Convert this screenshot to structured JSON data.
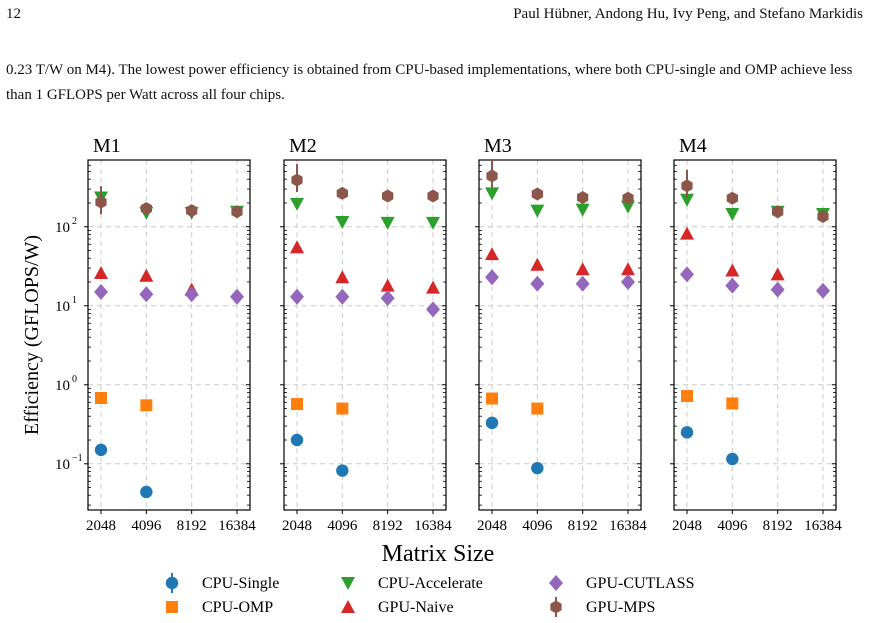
{
  "header": {
    "page_number": "12",
    "authors": "Paul Hübner, Andong Hu, Ivy Peng, and Stefano Markidis"
  },
  "paragraph": "0.23 T/W on M4). The lowest power efficiency is obtained from CPU-based implementations, where both CPU-single and OMP achieve less than 1 GFLOPS per Watt across all four chips.",
  "chart_data": {
    "type": "scatter",
    "xlabel": "Matrix Size",
    "ylabel": "Efficiency (GFLOPS/W)",
    "yscale": "log",
    "ylim": [
      0.026,
      700
    ],
    "categories": [
      "2048",
      "4096",
      "8192",
      "16384"
    ],
    "ytick_labels": [
      "10",
      "10",
      "10",
      "10"
    ],
    "ytick_exponents": [
      "2",
      "1",
      "0",
      "−1"
    ],
    "ytick_values": [
      100,
      10,
      1,
      0.1
    ],
    "grid": true,
    "legend_position": "bottom",
    "series_styles": [
      {
        "name": "CPU-Single",
        "color": "#1f77b4",
        "marker": "circle"
      },
      {
        "name": "CPU-OMP",
        "color": "#ff7f0e",
        "marker": "square"
      },
      {
        "name": "CPU-Accelerate",
        "color": "#2ca02c",
        "marker": "triangle-down"
      },
      {
        "name": "GPU-Naive",
        "color": "#d62728",
        "marker": "triangle-up"
      },
      {
        "name": "GPU-CUTLASS",
        "color": "#9467bd",
        "marker": "diamond"
      },
      {
        "name": "GPU-MPS",
        "color": "#8c564b",
        "marker": "hexagon"
      }
    ],
    "panels": [
      {
        "title": "M1",
        "series": [
          {
            "name": "CPU-Single",
            "values": [
              0.15,
              0.044,
              null,
              null
            ]
          },
          {
            "name": "CPU-OMP",
            "values": [
              0.68,
              0.55,
              null,
              null
            ]
          },
          {
            "name": "CPU-Accelerate",
            "values": [
              235,
              150,
              150,
              155
            ]
          },
          {
            "name": "GPU-Naive",
            "values": [
              26,
              24,
              16,
              null
            ]
          },
          {
            "name": "GPU-CUTLASS",
            "values": [
              15,
              14,
              14,
              13
            ]
          },
          {
            "name": "GPU-MPS",
            "values": [
              205,
              170,
              160,
              155
            ]
          }
        ]
      },
      {
        "title": "M2",
        "series": [
          {
            "name": "CPU-Single",
            "values": [
              0.2,
              0.082,
              null,
              null
            ]
          },
          {
            "name": "CPU-OMP",
            "values": [
              0.57,
              0.5,
              null,
              null
            ]
          },
          {
            "name": "CPU-Accelerate",
            "values": [
              195,
              115,
              112,
              112
            ]
          },
          {
            "name": "GPU-Naive",
            "values": [
              55,
              23,
              18,
              17
            ]
          },
          {
            "name": "GPU-CUTLASS",
            "values": [
              13,
              13,
              12.5,
              9
            ]
          },
          {
            "name": "GPU-MPS",
            "values": [
              390,
              265,
              245,
              245
            ]
          }
        ]
      },
      {
        "title": "M3",
        "series": [
          {
            "name": "CPU-Single",
            "values": [
              0.33,
              0.088,
              null,
              null
            ]
          },
          {
            "name": "CPU-OMP",
            "values": [
              0.67,
              0.5,
              null,
              null
            ]
          },
          {
            "name": "CPU-Accelerate",
            "values": [
              265,
              160,
              165,
              180
            ]
          },
          {
            "name": "GPU-Naive",
            "values": [
              45,
              33,
              29,
              29
            ]
          },
          {
            "name": "GPU-CUTLASS",
            "values": [
              23,
              19,
              19,
              20
            ]
          },
          {
            "name": "GPU-MPS",
            "values": [
              440,
              260,
              235,
              230
            ]
          }
        ]
      },
      {
        "title": "M4",
        "series": [
          {
            "name": "CPU-Single",
            "values": [
              0.25,
              0.115,
              null,
              null
            ]
          },
          {
            "name": "CPU-OMP",
            "values": [
              0.72,
              0.58,
              null,
              null
            ]
          },
          {
            "name": "CPU-Accelerate",
            "values": [
              220,
              145,
              155,
              145
            ]
          },
          {
            "name": "GPU-Naive",
            "values": [
              82,
              28,
              25,
              null
            ]
          },
          {
            "name": "GPU-CUTLASS",
            "values": [
              25,
              18,
              16,
              15.5
            ]
          },
          {
            "name": "GPU-MPS",
            "values": [
              330,
              230,
              155,
              135
            ]
          }
        ]
      }
    ]
  }
}
